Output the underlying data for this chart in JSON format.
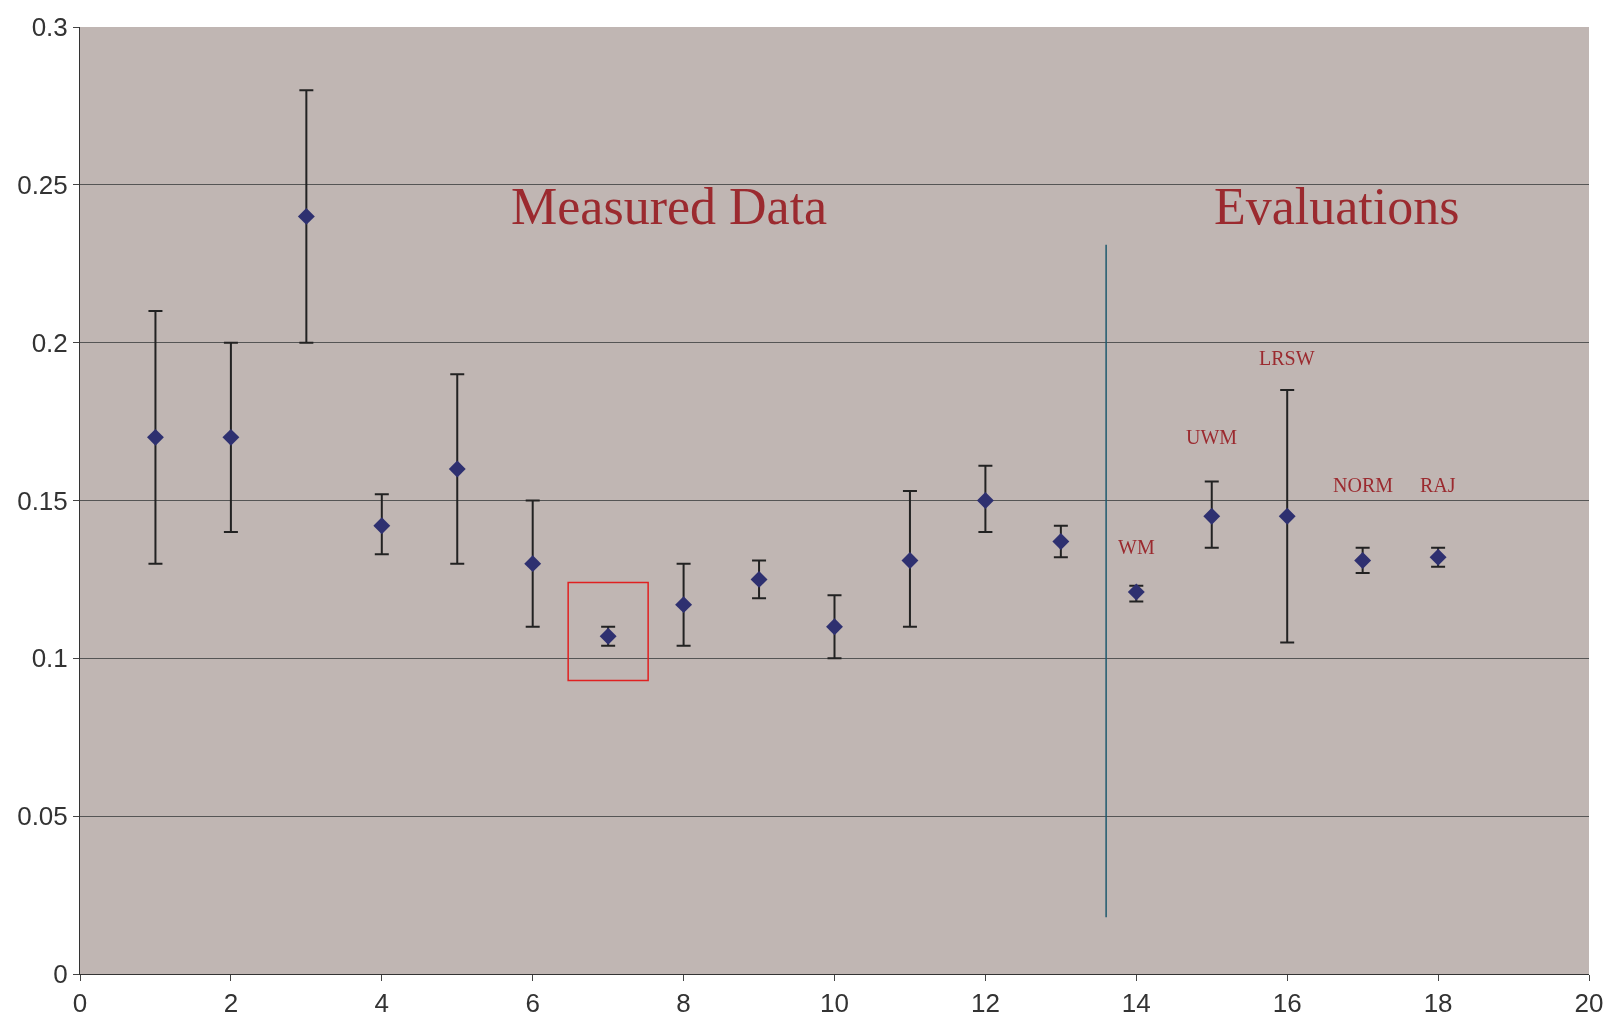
{
  "chart_data": {
    "type": "scatter",
    "marker": "diamond",
    "color": "#2e3070",
    "x": [
      1,
      2,
      3,
      4,
      5,
      6,
      7,
      8,
      9,
      10,
      11,
      12,
      13,
      14,
      15,
      16,
      17,
      18
    ],
    "values": [
      0.17,
      0.17,
      0.24,
      0.142,
      0.16,
      0.13,
      0.107,
      0.117,
      0.125,
      0.11,
      0.131,
      0.15,
      0.137,
      0.121,
      0.145,
      0.145,
      0.131,
      0.132
    ],
    "errors": [
      [
        0.13,
        0.21
      ],
      [
        0.14,
        0.2
      ],
      [
        0.2,
        0.28
      ],
      [
        0.133,
        0.152
      ],
      [
        0.13,
        0.19
      ],
      [
        0.11,
        0.15
      ],
      [
        0.104,
        0.11
      ],
      [
        0.104,
        0.13
      ],
      [
        0.119,
        0.131
      ],
      [
        0.1,
        0.12
      ],
      [
        0.11,
        0.153
      ],
      [
        0.14,
        0.161
      ],
      [
        0.132,
        0.142
      ],
      [
        0.118,
        0.123
      ],
      [
        0.135,
        0.156
      ],
      [
        0.105,
        0.185
      ],
      [
        0.127,
        0.135
      ],
      [
        0.129,
        0.135
      ]
    ],
    "xlim": [
      0,
      20
    ],
    "xticks": [
      0,
      2,
      4,
      6,
      8,
      10,
      12,
      14,
      16,
      18,
      20
    ],
    "ylim": [
      0,
      0.3
    ],
    "yticks": [
      0,
      0.05,
      0.1,
      0.15,
      0.2,
      0.25,
      0.3
    ],
    "grid": "y",
    "legend": false,
    "ref_lines": [
      {
        "axis": "x",
        "value": 13.6,
        "color": "#1f5a6e"
      }
    ],
    "annotations": [
      "Measured Data",
      "Evaluations",
      "WM",
      "UWM",
      "LRSW",
      "NORM",
      "RAJ"
    ]
  }
}
